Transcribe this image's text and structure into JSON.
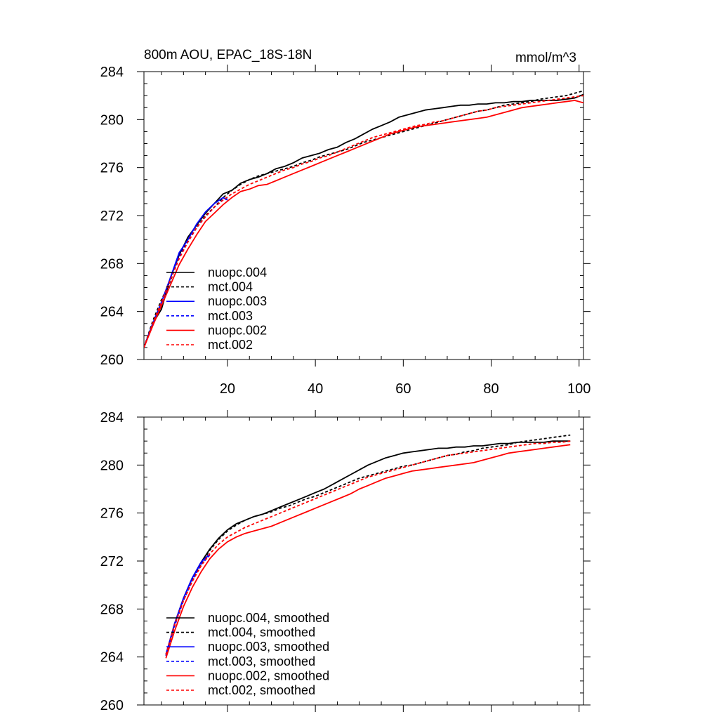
{
  "chart_data": [
    {
      "type": "line",
      "title": "800m AOU, EPAC_18S-18N",
      "units_label": "mmol/m^3",
      "xlim": [
        1,
        101
      ],
      "ylim": [
        260,
        284
      ],
      "xticks": [
        20,
        40,
        60,
        80,
        100
      ],
      "xtick_labels": [
        "20",
        "40",
        "60",
        "80",
        "100"
      ],
      "yticks": [
        260,
        264,
        268,
        272,
        276,
        280,
        284
      ],
      "ytick_labels": [
        "260",
        "264",
        "268",
        "272",
        "276",
        "280",
        "284"
      ],
      "grid": false,
      "legend_position": "bottom-left",
      "series": [
        {
          "name": "nuopc.004",
          "color": "#000000",
          "dash": "solid",
          "x": [
            1,
            3,
            5,
            7,
            9,
            11,
            13,
            15,
            17,
            19,
            21,
            23,
            25,
            27,
            29,
            31,
            33,
            35,
            37,
            39,
            41,
            43,
            45,
            47,
            49,
            51,
            53,
            55,
            57,
            59,
            61,
            63,
            65,
            67,
            69,
            71,
            73,
            75,
            77,
            79,
            81,
            83,
            85,
            87,
            89,
            91,
            93,
            95,
            97,
            99,
            101
          ],
          "values": [
            261.0,
            263.0,
            264.2,
            266.8,
            268.7,
            270.2,
            271.2,
            272.2,
            273.0,
            273.8,
            274.1,
            274.7,
            275.0,
            275.2,
            275.5,
            275.9,
            276.1,
            276.4,
            276.8,
            277.0,
            277.2,
            277.5,
            277.7,
            278.1,
            278.4,
            278.8,
            279.2,
            279.5,
            279.8,
            280.2,
            280.4,
            280.6,
            280.8,
            280.9,
            281.0,
            281.1,
            281.2,
            281.2,
            281.3,
            281.3,
            281.4,
            281.4,
            281.5,
            281.5,
            281.6,
            281.6,
            281.6,
            281.6,
            281.7,
            281.8,
            282.1
          ]
        },
        {
          "name": "mct.004",
          "color": "#000000",
          "dash": "dashed",
          "x": [
            1,
            3,
            5,
            7,
            9,
            11,
            13,
            15,
            17,
            19,
            21,
            23,
            25,
            27,
            29,
            31,
            33,
            35,
            37,
            39,
            41,
            43,
            45,
            47,
            49,
            51,
            53,
            55,
            57,
            59,
            61,
            63,
            65,
            67,
            69,
            71,
            73,
            75,
            77,
            79,
            81,
            83,
            85,
            87,
            89,
            91,
            93,
            95,
            97,
            99,
            101
          ],
          "values": [
            261.0,
            263.2,
            265.0,
            266.5,
            268.6,
            269.9,
            271.0,
            272.0,
            272.7,
            273.5,
            274.1,
            274.6,
            275.0,
            275.3,
            275.5,
            275.7,
            275.9,
            276.1,
            276.4,
            276.6,
            276.9,
            277.1,
            277.3,
            277.5,
            277.8,
            278.1,
            278.3,
            278.5,
            278.7,
            278.9,
            279.1,
            279.3,
            279.5,
            279.7,
            279.9,
            280.1,
            280.3,
            280.5,
            280.7,
            280.8,
            281.0,
            281.2,
            281.3,
            281.4,
            281.5,
            281.7,
            281.8,
            281.9,
            282.0,
            282.2,
            282.4
          ]
        },
        {
          "name": "nuopc.003",
          "color": "#0000ff",
          "dash": "solid",
          "x": [
            1,
            3,
            5,
            7,
            9,
            11,
            13,
            15,
            17,
            19,
            20
          ],
          "values": [
            261.0,
            263.0,
            264.8,
            266.8,
            268.9,
            270.0,
            271.3,
            272.3,
            273.0,
            273.5,
            273.3
          ]
        },
        {
          "name": "mct.003",
          "color": "#0000ff",
          "dash": "dashed",
          "x": [
            1,
            3,
            5,
            7,
            9,
            11,
            13,
            15,
            17,
            19,
            20
          ],
          "values": [
            261.0,
            263.0,
            264.6,
            266.6,
            268.6,
            269.8,
            271.0,
            271.9,
            272.7,
            273.3,
            273.4
          ]
        },
        {
          "name": "nuopc.002",
          "color": "#ff0000",
          "dash": "solid",
          "x": [
            1,
            3,
            5,
            7,
            9,
            11,
            13,
            15,
            17,
            19,
            21,
            23,
            25,
            27,
            29,
            31,
            33,
            35,
            37,
            39,
            41,
            43,
            45,
            47,
            49,
            51,
            53,
            55,
            57,
            59,
            61,
            63,
            65,
            67,
            69,
            71,
            73,
            75,
            77,
            79,
            81,
            83,
            85,
            87,
            89,
            91,
            93,
            95,
            97,
            99,
            101
          ],
          "values": [
            261.0,
            262.8,
            264.5,
            266.2,
            267.9,
            269.2,
            270.4,
            271.5,
            272.2,
            272.9,
            273.5,
            274.0,
            274.2,
            274.5,
            274.6,
            274.9,
            275.2,
            275.5,
            275.8,
            276.1,
            276.4,
            276.7,
            277.0,
            277.3,
            277.6,
            277.9,
            278.2,
            278.5,
            278.8,
            279.0,
            279.2,
            279.4,
            279.5,
            279.6,
            279.7,
            279.8,
            279.9,
            280.0,
            280.1,
            280.2,
            280.4,
            280.6,
            280.8,
            281.0,
            281.1,
            281.2,
            281.3,
            281.4,
            281.5,
            281.6,
            281.4
          ]
        },
        {
          "name": "mct.002",
          "color": "#ff0000",
          "dash": "dashed",
          "x": [
            1,
            3,
            5,
            7,
            9,
            11,
            13,
            15,
            17,
            19,
            21,
            23,
            25,
            27,
            29,
            31,
            33,
            35,
            37,
            39,
            41,
            43,
            45,
            47,
            49,
            51,
            53,
            55,
            57,
            59,
            61,
            63,
            65,
            67,
            69,
            71,
            73,
            75,
            77,
            79,
            81,
            83,
            85,
            87,
            89,
            91,
            93,
            95,
            97,
            99,
            101
          ],
          "values": [
            261.0,
            263.0,
            264.8,
            266.6,
            268.4,
            269.8,
            271.0,
            271.9,
            272.7,
            273.3,
            273.8,
            274.2,
            274.6,
            274.9,
            275.2,
            275.5,
            275.8,
            276.0,
            276.3,
            276.5,
            276.8,
            277.0,
            277.3,
            277.6,
            277.9,
            278.2,
            278.5,
            278.7,
            278.9,
            279.1,
            279.3,
            279.5,
            279.6,
            279.8,
            279.9,
            280.1,
            280.3,
            280.5,
            280.7,
            280.8,
            281.0,
            281.1,
            281.2,
            281.3,
            281.4,
            281.5,
            281.6,
            281.7,
            281.8,
            281.9,
            282.0
          ]
        }
      ]
    },
    {
      "type": "line",
      "title": "",
      "units_label": "",
      "xlim": [
        1,
        101
      ],
      "ylim": [
        260,
        284
      ],
      "xticks": [
        20,
        40,
        60,
        80,
        100
      ],
      "xtick_labels": [],
      "yticks": [
        260,
        264,
        268,
        272,
        276,
        280,
        284
      ],
      "ytick_labels": [
        "260",
        "264",
        "268",
        "272",
        "276",
        "280",
        "284"
      ],
      "grid": false,
      "legend_position": "bottom-left",
      "series": [
        {
          "name": "nuopc.004, smoothed",
          "color": "#000000",
          "dash": "solid",
          "x": [
            6,
            8,
            10,
            12,
            14,
            16,
            18,
            20,
            22,
            24,
            26,
            28,
            30,
            32,
            34,
            36,
            38,
            40,
            42,
            44,
            46,
            48,
            50,
            52,
            54,
            56,
            58,
            60,
            62,
            64,
            66,
            68,
            70,
            72,
            74,
            76,
            78,
            80,
            82,
            84,
            86,
            88,
            90,
            92,
            94,
            96,
            98
          ],
          "values": [
            264.2,
            266.8,
            268.9,
            270.6,
            271.9,
            273.0,
            273.9,
            274.6,
            275.1,
            275.4,
            275.7,
            275.9,
            276.2,
            276.5,
            276.8,
            277.1,
            277.4,
            277.7,
            278.0,
            278.4,
            278.8,
            279.2,
            279.6,
            280.0,
            280.3,
            280.6,
            280.8,
            281.0,
            281.1,
            281.2,
            281.3,
            281.4,
            281.4,
            281.5,
            281.5,
            281.6,
            281.6,
            281.7,
            281.8,
            281.8,
            281.9,
            281.9,
            281.9,
            281.9,
            282.0,
            282.0,
            282.0
          ]
        },
        {
          "name": "mct.004, smoothed",
          "color": "#000000",
          "dash": "dashed",
          "x": [
            6,
            8,
            10,
            12,
            14,
            16,
            18,
            20,
            22,
            24,
            26,
            28,
            30,
            32,
            34,
            36,
            38,
            40,
            42,
            44,
            46,
            48,
            50,
            52,
            54,
            56,
            58,
            60,
            62,
            64,
            66,
            68,
            70,
            72,
            74,
            76,
            78,
            80,
            82,
            84,
            86,
            88,
            90,
            92,
            94,
            96,
            98
          ],
          "values": [
            264.2,
            266.7,
            268.8,
            270.5,
            271.8,
            272.9,
            273.8,
            274.5,
            275.0,
            275.4,
            275.7,
            275.9,
            276.1,
            276.4,
            276.6,
            276.9,
            277.2,
            277.4,
            277.7,
            278.0,
            278.3,
            278.6,
            278.9,
            279.1,
            279.3,
            279.5,
            279.7,
            279.9,
            280.0,
            280.2,
            280.4,
            280.6,
            280.8,
            280.9,
            281.1,
            281.2,
            281.4,
            281.5,
            281.6,
            281.7,
            281.9,
            282.0,
            282.1,
            282.2,
            282.3,
            282.4,
            282.5
          ]
        },
        {
          "name": "nuopc.003, smoothed",
          "color": "#0000ff",
          "dash": "solid",
          "x": [
            6,
            8,
            10,
            12,
            14,
            16
          ],
          "values": [
            264.2,
            266.8,
            268.9,
            270.6,
            271.9,
            272.6
          ]
        },
        {
          "name": "mct.003, smoothed",
          "color": "#0000ff",
          "dash": "dashed",
          "x": [
            6,
            8,
            10,
            12,
            14,
            16
          ],
          "values": [
            264.1,
            266.6,
            268.7,
            270.4,
            271.7,
            272.5
          ]
        },
        {
          "name": "nuopc.002, smoothed",
          "color": "#ff0000",
          "dash": "solid",
          "x": [
            6,
            8,
            10,
            12,
            14,
            16,
            18,
            20,
            22,
            24,
            26,
            28,
            30,
            32,
            34,
            36,
            38,
            40,
            42,
            44,
            46,
            48,
            50,
            52,
            54,
            56,
            58,
            60,
            62,
            64,
            66,
            68,
            70,
            72,
            74,
            76,
            78,
            80,
            82,
            84,
            86,
            88,
            90,
            92,
            94,
            96,
            98
          ],
          "values": [
            263.9,
            266.2,
            268.2,
            269.8,
            271.1,
            272.2,
            273.0,
            273.6,
            274.0,
            274.3,
            274.5,
            274.7,
            274.9,
            275.2,
            275.5,
            275.8,
            276.1,
            276.4,
            276.7,
            277.0,
            277.3,
            277.6,
            278.0,
            278.3,
            278.6,
            278.9,
            279.1,
            279.3,
            279.5,
            279.6,
            279.7,
            279.8,
            279.9,
            280.0,
            280.1,
            280.2,
            280.4,
            280.6,
            280.8,
            281.0,
            281.1,
            281.2,
            281.3,
            281.4,
            281.5,
            281.6,
            281.7
          ]
        },
        {
          "name": "mct.002, smoothed",
          "color": "#ff0000",
          "dash": "dashed",
          "x": [
            6,
            8,
            10,
            12,
            14,
            16,
            18,
            20,
            22,
            24,
            26,
            28,
            30,
            32,
            34,
            36,
            38,
            40,
            42,
            44,
            46,
            48,
            50,
            52,
            54,
            56,
            58,
            60,
            62,
            64,
            66,
            68,
            70,
            72,
            74,
            76,
            78,
            80,
            82,
            84,
            86,
            88,
            90,
            92,
            94,
            96,
            98
          ],
          "values": [
            264.2,
            266.7,
            268.7,
            270.3,
            271.6,
            272.6,
            273.4,
            274.0,
            274.4,
            274.8,
            275.1,
            275.4,
            275.7,
            276.0,
            276.3,
            276.6,
            276.9,
            277.2,
            277.5,
            277.8,
            278.1,
            278.4,
            278.7,
            279.0,
            279.2,
            279.4,
            279.6,
            279.8,
            280.0,
            280.2,
            280.4,
            280.6,
            280.8,
            280.9,
            281.0,
            281.1,
            281.2,
            281.3,
            281.4,
            281.5,
            281.6,
            281.7,
            281.8,
            281.8,
            281.9,
            281.9,
            282.0
          ]
        }
      ]
    }
  ]
}
